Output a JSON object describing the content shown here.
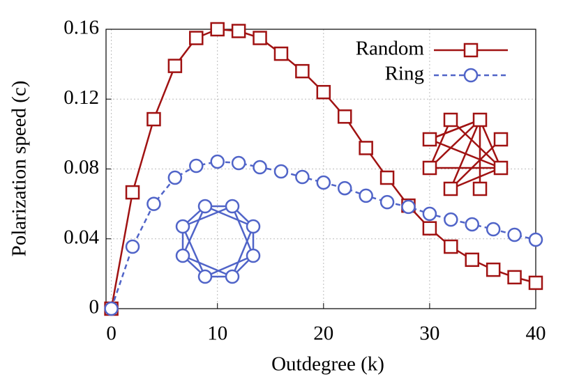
{
  "chart_data": {
    "type": "line",
    "xlabel": "Outdegree (k)",
    "ylabel": "Polarization speed (c)",
    "x": [
      0,
      2,
      4,
      6,
      8,
      10,
      12,
      14,
      16,
      18,
      20,
      22,
      24,
      26,
      28,
      30,
      32,
      34,
      36,
      38,
      40
    ],
    "series": [
      {
        "name": "Random",
        "color": "#a01212",
        "marker": "square",
        "dashed": false,
        "values": [
          0,
          0.0666,
          0.1085,
          0.139,
          0.155,
          0.16,
          0.159,
          0.155,
          0.146,
          0.136,
          0.124,
          0.11,
          0.092,
          0.075,
          0.059,
          0.046,
          0.0355,
          0.028,
          0.0223,
          0.018,
          0.0148
        ]
      },
      {
        "name": "Ring",
        "color": "#5064c8",
        "marker": "circle",
        "dashed": true,
        "values": [
          0,
          0.0355,
          0.06,
          0.075,
          0.0818,
          0.0842,
          0.0834,
          0.081,
          0.0786,
          0.0754,
          0.0722,
          0.069,
          0.0647,
          0.061,
          0.0583,
          0.0543,
          0.051,
          0.0483,
          0.0455,
          0.0423,
          0.0395
        ]
      }
    ],
    "xlim": [
      -0.5,
      40
    ],
    "ylim": [
      0,
      0.16
    ],
    "xticks": [
      0,
      10,
      20,
      30,
      40
    ],
    "yticks": [
      0,
      0.04,
      0.08,
      0.12,
      0.16
    ],
    "grid": true,
    "legend": "upper right"
  }
}
